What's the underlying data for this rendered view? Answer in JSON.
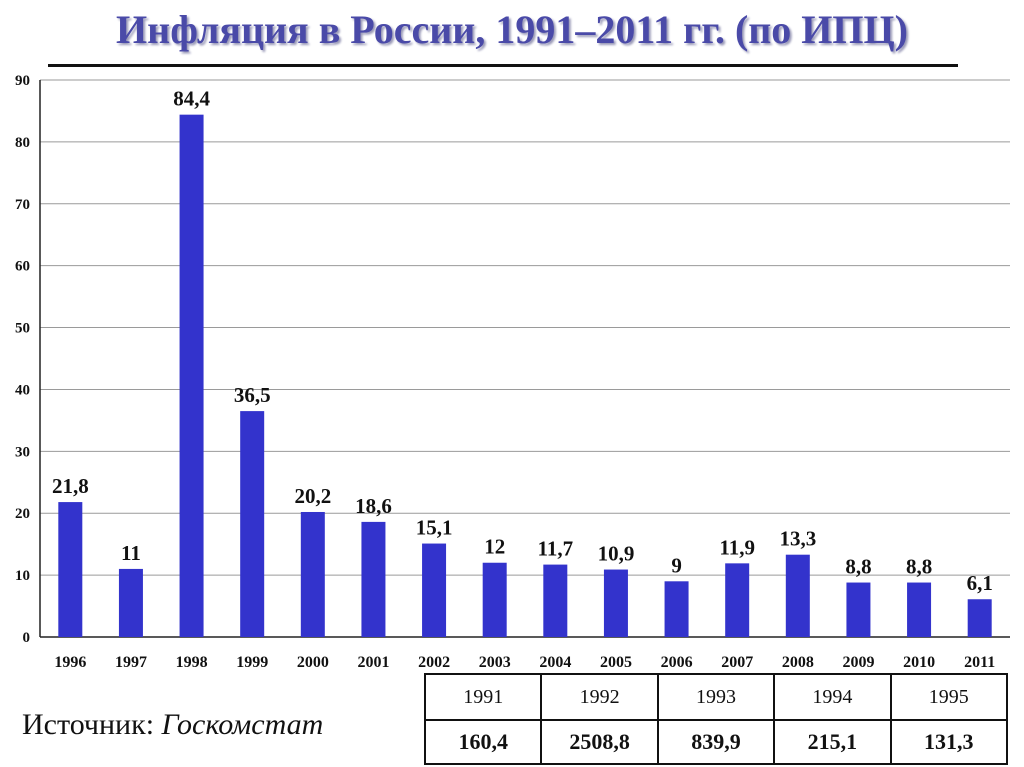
{
  "chart_data": {
    "type": "bar",
    "title": "Инфляция в России, 1991–2011 гг. (по ИПЦ)",
    "categories": [
      "1996",
      "1997",
      "1998",
      "1999",
      "2000",
      "2001",
      "2002",
      "2003",
      "2004",
      "2005",
      "2006",
      "2007",
      "2008",
      "2009",
      "2010",
      "2011"
    ],
    "values": [
      21.8,
      11,
      84.4,
      36.5,
      20.2,
      18.6,
      15.1,
      12,
      11.7,
      10.9,
      9,
      11.9,
      13.3,
      8.8,
      8.8,
      6.1
    ],
    "value_labels": [
      "21,8",
      "11",
      "84,4",
      "36,5",
      "20,2",
      "18,6",
      "15,1",
      "12",
      "11,7",
      "10,9",
      "9",
      "11,9",
      "13,3",
      "8,8",
      "8,8",
      "6,1"
    ],
    "ylim": [
      0,
      90
    ],
    "yticks": [
      "0",
      "10",
      "20",
      "30",
      "40",
      "50",
      "60",
      "70",
      "80",
      "90"
    ],
    "grid": true,
    "bar_color": "#3333cc"
  },
  "source": {
    "prefix": "Источник:",
    "name": "Госкомстат"
  },
  "early_years": {
    "years": [
      "1991",
      "1992",
      "1993",
      "1994",
      "1995"
    ],
    "values": [
      "160,4",
      "2508,8",
      "839,9",
      "215,1",
      "131,3"
    ]
  }
}
